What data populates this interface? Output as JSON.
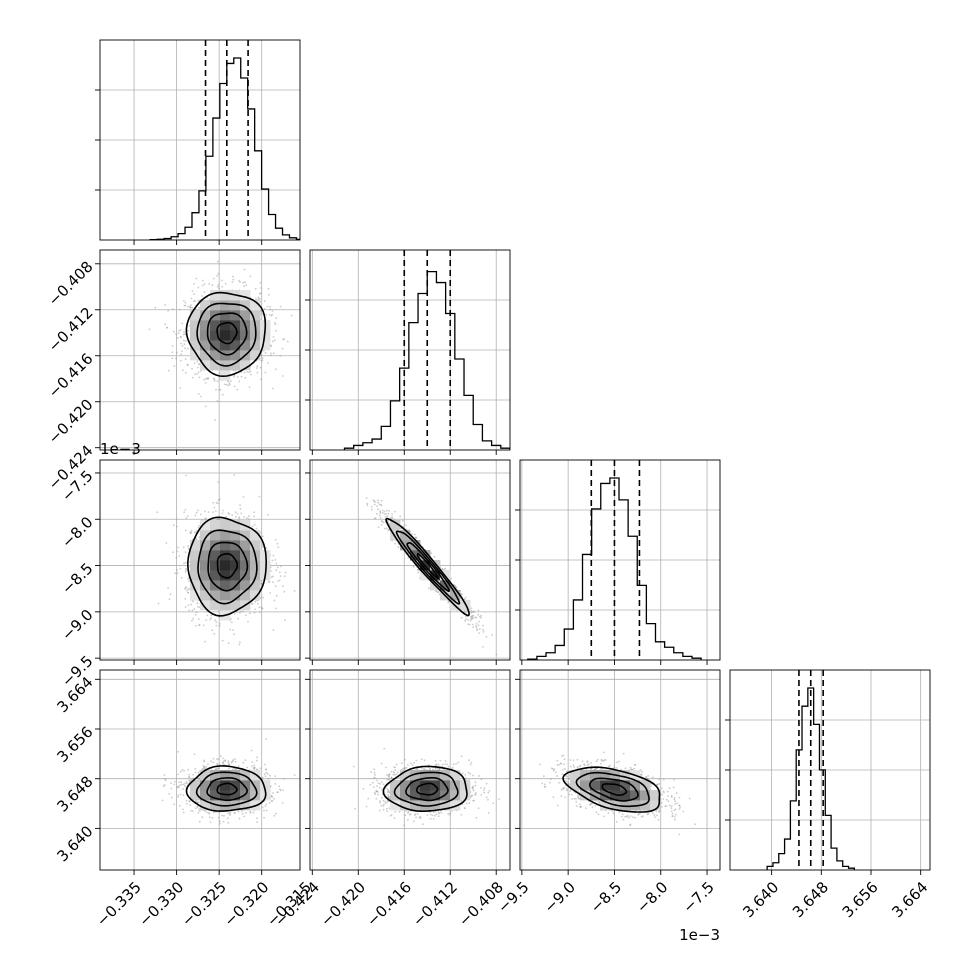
{
  "chart_data": {
    "type": "corner",
    "title": "",
    "parameters": [
      {
        "label": "",
        "range": [
          -0.339,
          -0.3155
        ],
        "ticks": [
          -0.335,
          -0.33,
          -0.325,
          -0.32,
          -0.315
        ],
        "tick_labels": [
          "−0.335",
          "−0.330",
          "−0.325",
          "−0.320",
          "−0.315"
        ],
        "quantiles": [
          -0.3266,
          -0.3241,
          -0.3216
        ],
        "hist_bins": [
          0.002,
          0.004,
          0.008,
          0.018,
          0.035,
          0.07,
          0.15,
          0.27,
          0.46,
          0.67,
          0.86,
          0.97,
          1.0,
          0.89,
          0.72,
          0.49,
          0.28,
          0.14,
          0.065,
          0.028,
          0.012,
          0.004
        ]
      },
      {
        "label": "",
        "range": [
          -0.4242,
          -0.4068
        ],
        "ticks": [
          -0.424,
          -0.42,
          -0.416,
          -0.412,
          -0.408
        ],
        "tick_labels": [
          "−0.424",
          "−0.420",
          "−0.416",
          "−0.412",
          "−0.408"
        ],
        "quantiles": [
          -0.416,
          -0.414,
          -0.412
        ],
        "hist_bins": [
          0.01,
          0.025,
          0.04,
          0.06,
          0.13,
          0.27,
          0.45,
          0.7,
          0.86,
          0.98,
          0.92,
          0.75,
          0.5,
          0.3,
          0.14,
          0.05,
          0.025,
          0.01
        ]
      },
      {
        "label": "",
        "range": [
          -9.52,
          -7.36
        ],
        "offset_label": "1e−3",
        "ticks": [
          -9.5,
          -9.0,
          -8.5,
          -8.0,
          -7.5
        ],
        "tick_labels": [
          "−9.5",
          "−9.0",
          "−8.5",
          "−8.0",
          "−7.5"
        ],
        "quantiles": [
          -8.75,
          -8.5,
          -8.23
        ],
        "hist_bins": [
          0.005,
          0.02,
          0.04,
          0.08,
          0.17,
          0.33,
          0.58,
          0.83,
          0.97,
          1.0,
          0.88,
          0.68,
          0.41,
          0.2,
          0.1,
          0.07,
          0.04,
          0.02,
          0.01
        ]
      },
      {
        "label": "",
        "range": [
          3.6333,
          3.6655
        ],
        "ticks": [
          3.64,
          3.648,
          3.656,
          3.664
        ],
        "tick_labels": [
          "3.640",
          "3.648",
          "3.656",
          "3.664"
        ],
        "quantiles": [
          3.6444,
          3.6463,
          3.6483
        ],
        "hist_bins": [
          0.02,
          0.04,
          0.09,
          0.17,
          0.38,
          0.66,
          0.9,
          1.0,
          0.8,
          0.55,
          0.3,
          0.12,
          0.05,
          0.02,
          0.01
        ]
      }
    ],
    "pairs": [
      {
        "row": 1,
        "col": 0,
        "mean": [
          -0.3241,
          -0.414
        ],
        "sigma": [
          0.0023,
          0.0018
        ],
        "rho": 0.0
      },
      {
        "row": 2,
        "col": 0,
        "mean": [
          -0.3241,
          -8.5
        ],
        "sigma": [
          0.0023,
          0.26
        ],
        "rho": 0.0
      },
      {
        "row": 2,
        "col": 1,
        "mean": [
          -0.414,
          -8.5
        ],
        "sigma": [
          0.0018,
          0.26
        ],
        "rho": -0.97
      },
      {
        "row": 3,
        "col": 0,
        "mean": [
          -0.3241,
          3.6463
        ],
        "sigma": [
          0.0023,
          0.0018
        ],
        "rho": 0.0
      },
      {
        "row": 3,
        "col": 1,
        "mean": [
          -0.414,
          3.6463
        ],
        "sigma": [
          0.0018,
          0.0018
        ],
        "rho": 0.05
      },
      {
        "row": 3,
        "col": 2,
        "mean": [
          -8.5,
          3.6463
        ],
        "sigma": [
          0.26,
          0.0018
        ],
        "rho": -0.45
      }
    ],
    "contour_levels_sigma": [
      0.5,
      1.0,
      1.5,
      2.0
    ],
    "grid": true,
    "colors": {
      "contour": "#000000",
      "points": "#9a9a9a",
      "quantile_line": "#000000",
      "grid": "#b0b0b0"
    }
  }
}
